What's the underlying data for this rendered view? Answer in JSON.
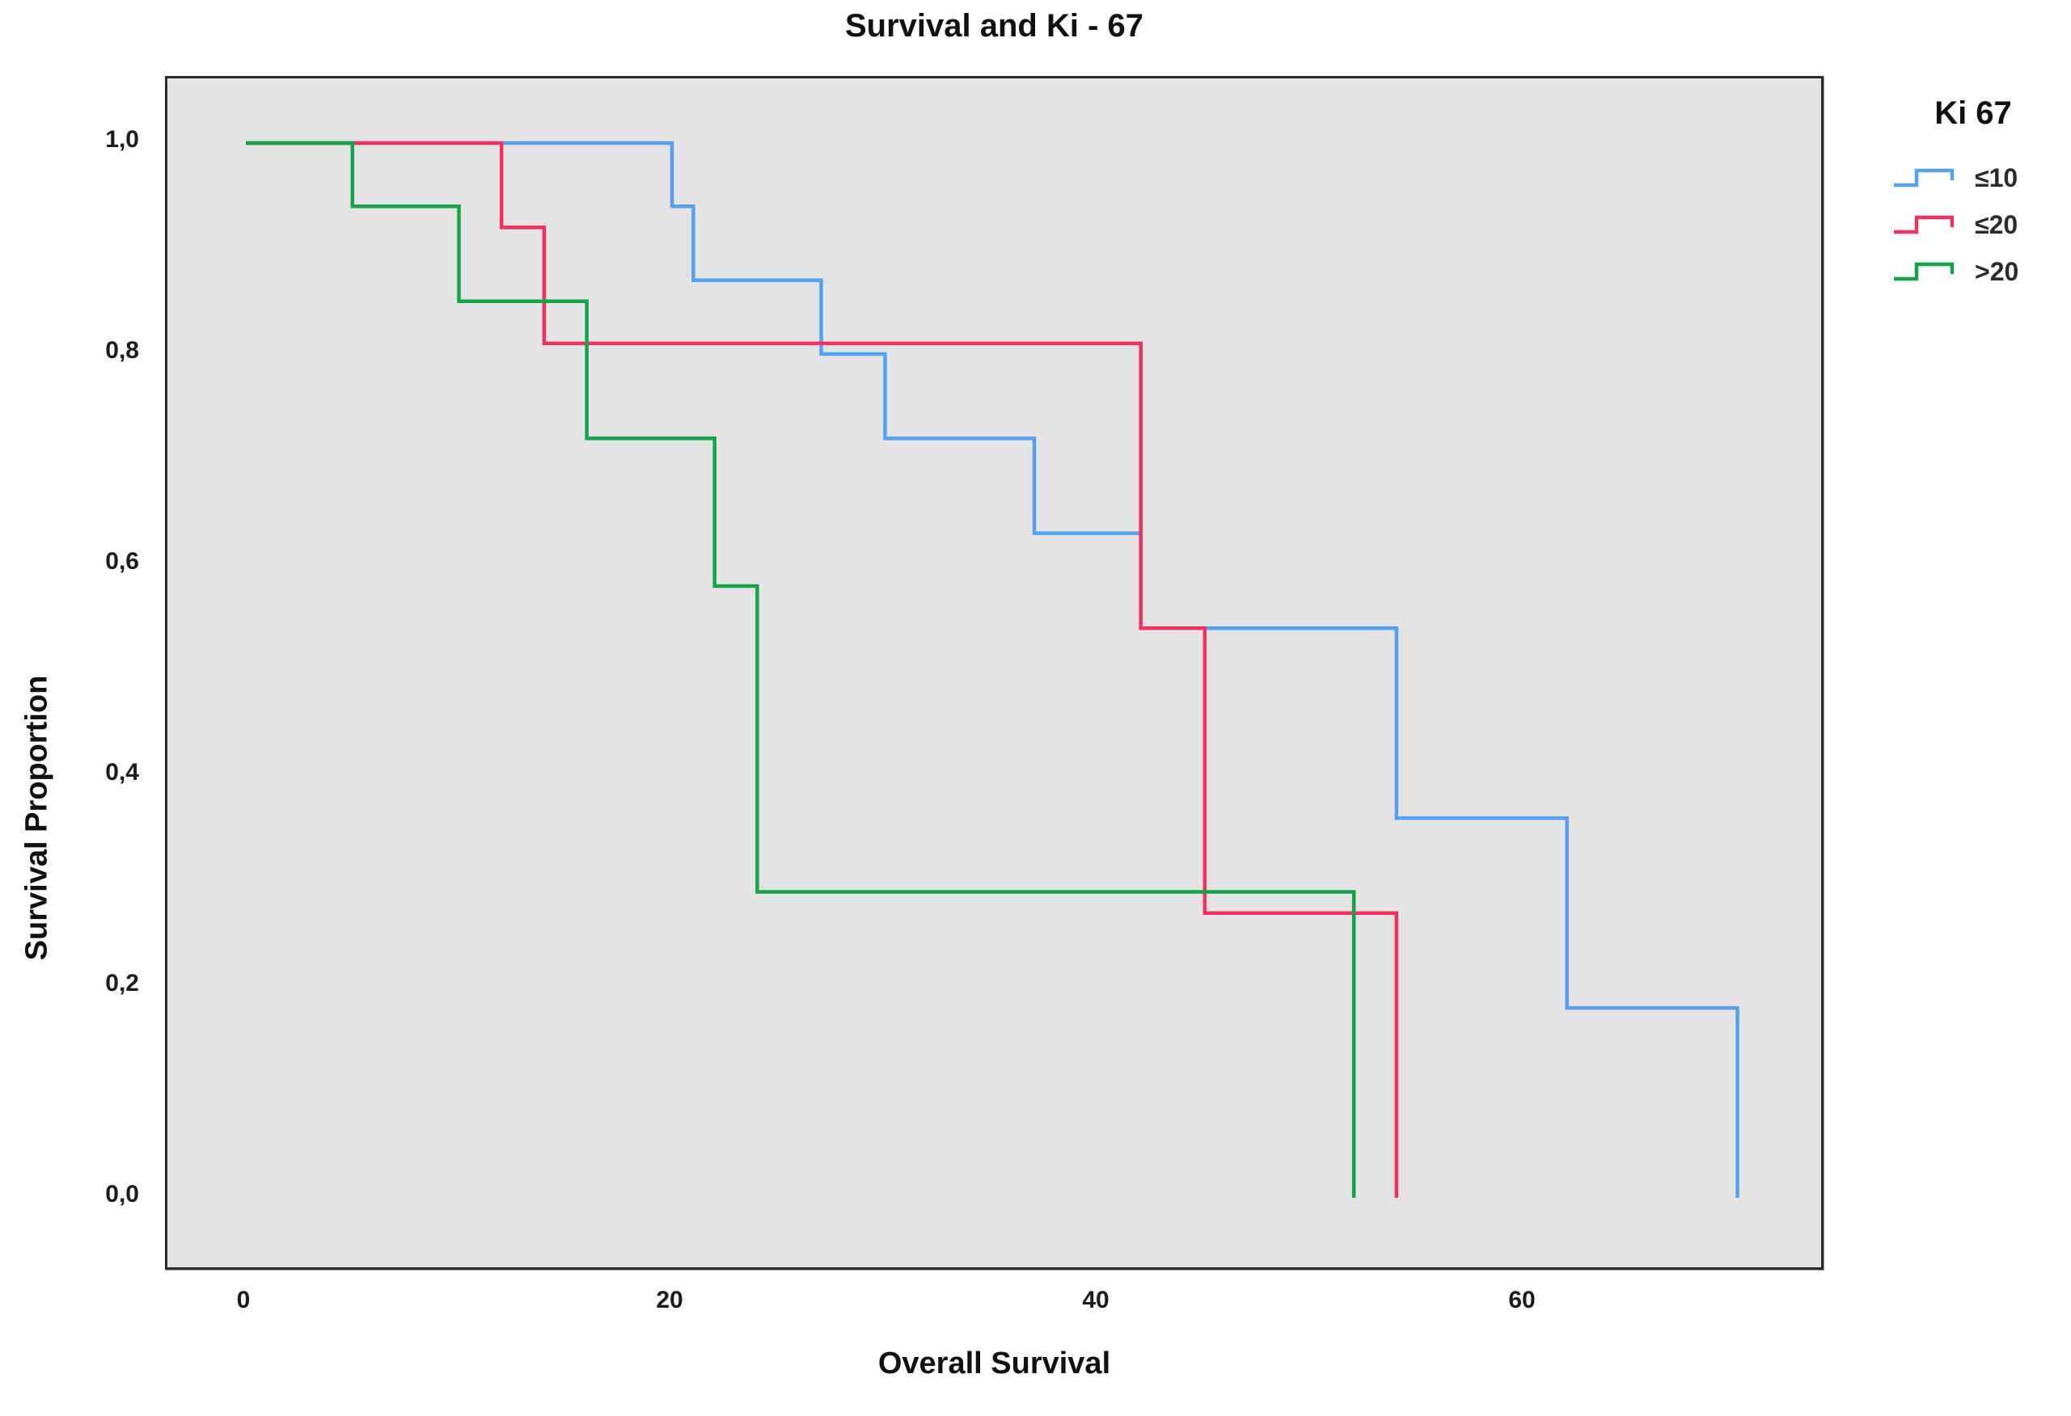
{
  "page": {
    "background": "#ffffff",
    "plot_background": "#e4e4e4",
    "plot_border": "#2b2b2b"
  },
  "chart_data": {
    "type": "line",
    "subtype": "kaplan-meier-step",
    "title": "Survival and Ki - 67",
    "xlabel": "Overall Survival",
    "ylabel": "Survival Proportion",
    "grid": false,
    "decimal_separator": ",",
    "xlim": [
      -3.7,
      74.2
    ],
    "ylim": [
      -0.07,
      1.06
    ],
    "legend": {
      "title": "Ki 67",
      "position": "top-right-outside"
    },
    "x_axis": {
      "ticks": [
        {
          "v": 0,
          "label": "0"
        },
        {
          "v": 20,
          "label": "20"
        },
        {
          "v": 40,
          "label": "40"
        },
        {
          "v": 60,
          "label": "60"
        }
      ]
    },
    "y_axis": {
      "ticks": [
        {
          "v": 1.0,
          "label": "1,0"
        },
        {
          "v": 0.8,
          "label": "0,8"
        },
        {
          "v": 0.6,
          "label": "0,6"
        },
        {
          "v": 0.4,
          "label": "0,4"
        },
        {
          "v": 0.2,
          "label": "0,2"
        },
        {
          "v": 0.0,
          "label": "0,0"
        }
      ]
    },
    "series": [
      {
        "name": "≤10",
        "color": "#55a1f0",
        "points": [
          [
            0,
            1.0
          ],
          [
            20,
            1.0
          ],
          [
            20,
            0.94
          ],
          [
            21,
            0.94
          ],
          [
            21,
            0.87
          ],
          [
            27,
            0.87
          ],
          [
            27,
            0.8
          ],
          [
            30,
            0.8
          ],
          [
            30,
            0.72
          ],
          [
            37,
            0.72
          ],
          [
            37,
            0.63
          ],
          [
            42,
            0.63
          ],
          [
            42,
            0.54
          ],
          [
            54,
            0.54
          ],
          [
            54,
            0.36
          ],
          [
            62,
            0.36
          ],
          [
            62,
            0.18
          ],
          [
            70,
            0.18
          ],
          [
            70,
            0.0
          ]
        ]
      },
      {
        "name": "≤20",
        "color": "#f23060",
        "points": [
          [
            0,
            1.0
          ],
          [
            12,
            1.0
          ],
          [
            12,
            0.92
          ],
          [
            14,
            0.92
          ],
          [
            14,
            0.81
          ],
          [
            42,
            0.81
          ],
          [
            42,
            0.54
          ],
          [
            45,
            0.54
          ],
          [
            45,
            0.27
          ],
          [
            54,
            0.27
          ],
          [
            54,
            0.0
          ]
        ]
      },
      {
        "name": ">20",
        "color": "#14a347",
        "points": [
          [
            0,
            1.0
          ],
          [
            5,
            1.0
          ],
          [
            5,
            0.94
          ],
          [
            10,
            0.94
          ],
          [
            10,
            0.85
          ],
          [
            16,
            0.85
          ],
          [
            16,
            0.72
          ],
          [
            22,
            0.72
          ],
          [
            22,
            0.58
          ],
          [
            24,
            0.58
          ],
          [
            24,
            0.29
          ],
          [
            52,
            0.29
          ],
          [
            52,
            0.0
          ]
        ]
      }
    ]
  }
}
